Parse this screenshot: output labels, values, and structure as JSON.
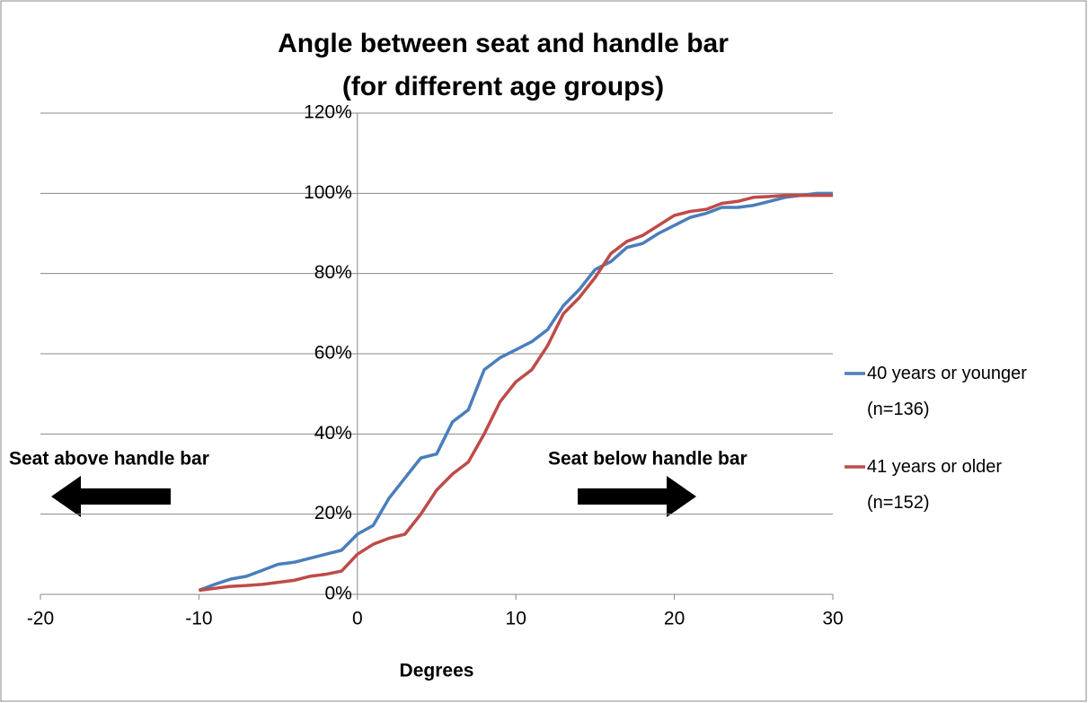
{
  "chart_data": {
    "type": "line",
    "title": [
      "Angle between seat and handle bar",
      "(for different age groups)"
    ],
    "xlabel": "Degrees",
    "annotations": [
      "Seat above handle bar",
      "Seat below handle bar"
    ],
    "x": [
      -10,
      -9,
      -8,
      -7,
      -6,
      -5,
      -4,
      -3,
      -2,
      -1,
      0,
      1,
      2,
      3,
      4,
      5,
      6,
      7,
      8,
      9,
      10,
      11,
      12,
      13,
      14,
      15,
      16,
      17,
      18,
      19,
      20,
      21,
      22,
      23,
      24,
      25,
      26,
      27,
      28,
      29,
      30
    ],
    "series": [
      {
        "name": "40 years or younger (n=136)",
        "color": "#4a7ebb",
        "values": [
          1,
          2.5,
          3.8,
          4.5,
          6,
          7.5,
          8,
          9,
          10,
          11,
          15,
          17.2,
          24,
          29,
          34,
          35,
          43,
          46,
          56,
          59,
          61,
          63,
          66,
          72,
          76,
          81,
          83,
          86.5,
          87.5,
          90,
          92,
          94,
          95,
          96.5,
          96.5,
          97,
          98,
          99,
          99.5,
          100,
          100
        ]
      },
      {
        "name": "41 years or older (n=152)",
        "color": "#be4b48",
        "values": [
          1,
          1.5,
          2,
          2.2,
          2.5,
          3,
          3.5,
          4.5,
          5,
          5.8,
          10,
          12.5,
          14,
          15,
          20,
          26,
          30,
          33,
          40,
          48,
          53,
          56,
          62,
          70,
          74,
          79,
          85,
          88,
          89.5,
          92,
          94.5,
          95.5,
          96,
          97.5,
          98,
          99,
          99.2,
          99.5,
          99.5,
          99.5,
          99.5
        ]
      }
    ],
    "xlim": [
      -20,
      30
    ],
    "xticks": [
      -20,
      -10,
      0,
      10,
      20,
      30
    ],
    "ylim": [
      0,
      120
    ],
    "yticks": [
      {
        "value": 0,
        "label": "0%"
      },
      {
        "value": 20,
        "label": "20%"
      },
      {
        "value": 40,
        "label": "40%"
      },
      {
        "value": 60,
        "label": "60%"
      },
      {
        "value": 80,
        "label": "80%"
      },
      {
        "value": 100,
        "label": "100%"
      },
      {
        "value": 120,
        "label": "120%"
      }
    ],
    "grid": true,
    "legend": "right"
  }
}
